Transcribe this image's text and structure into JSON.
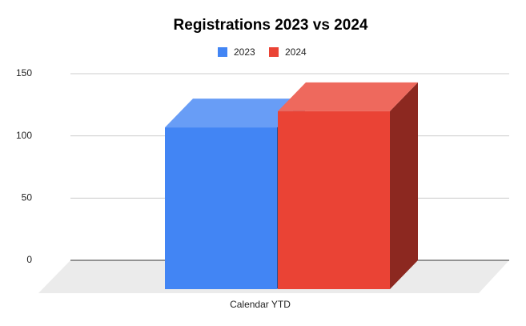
{
  "chart_data": {
    "type": "bar3d",
    "title": "Registrations 2023 vs 2024",
    "categories": [
      "Calendar YTD"
    ],
    "series": [
      {
        "name": "2023",
        "color": "#4285f4",
        "values": [
          130
        ]
      },
      {
        "name": "2024",
        "color": "#ea4335",
        "values": [
          143
        ]
      }
    ],
    "ylim": [
      0,
      150
    ],
    "yticks": [
      0,
      50,
      100,
      150
    ],
    "grid": true,
    "legend": "top"
  }
}
